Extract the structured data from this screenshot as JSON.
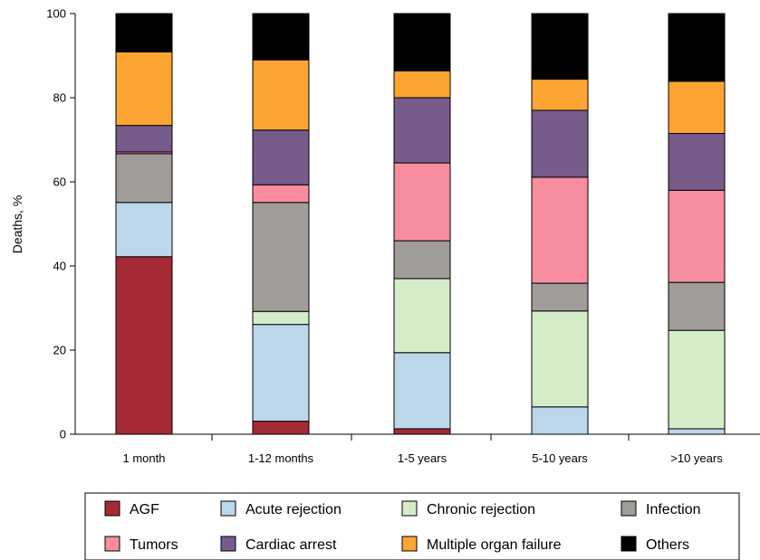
{
  "chart_data": {
    "type": "bar",
    "stacked": true,
    "ylabel": "Deaths, %",
    "xlabel": "",
    "ylim": [
      0,
      100
    ],
    "yticks": [
      0,
      20,
      40,
      60,
      80,
      100
    ],
    "categories": [
      "1 month",
      "1-12 months",
      "1-5 years",
      "5-10 years",
      ">10 years"
    ],
    "series": [
      {
        "name": "AGF",
        "color": "#a52a35",
        "values": [
          42.2,
          3.1,
          1.3,
          0,
          0
        ]
      },
      {
        "name": "Acute rejection",
        "color": "#bdd7ea",
        "values": [
          12.9,
          23.0,
          18.1,
          6.5,
          1.3
        ]
      },
      {
        "name": "Chronic rejection",
        "color": "#d4edc8",
        "values": [
          0,
          3.1,
          17.6,
          22.8,
          23.4
        ]
      },
      {
        "name": "Infection",
        "color": "#a09d99",
        "values": [
          11.6,
          25.9,
          9.0,
          6.6,
          11.4
        ]
      },
      {
        "name": "Tumors",
        "color": "#f78d9e",
        "values": [
          0.4,
          4.2,
          18.5,
          25.2,
          21.9
        ]
      },
      {
        "name": "Cardiac arrest",
        "color": "#775b8b",
        "values": [
          6.3,
          13.0,
          15.5,
          15.9,
          13.5
        ]
      },
      {
        "name": "Multiple organ failure",
        "color": "#fca533",
        "values": [
          17.5,
          16.7,
          6.4,
          7.4,
          12.4
        ]
      },
      {
        "name": "Others",
        "color": "#000000",
        "values": [
          9.1,
          11.0,
          13.6,
          15.6,
          16.1
        ]
      }
    ],
    "legend": {
      "position": "bottom",
      "rows": [
        [
          "AGF",
          "Acute rejection",
          "Chronic rejection",
          "Infection"
        ],
        [
          "Tumors",
          "Cardiac arrest",
          "Multiple organ failure",
          "Others"
        ]
      ]
    }
  }
}
